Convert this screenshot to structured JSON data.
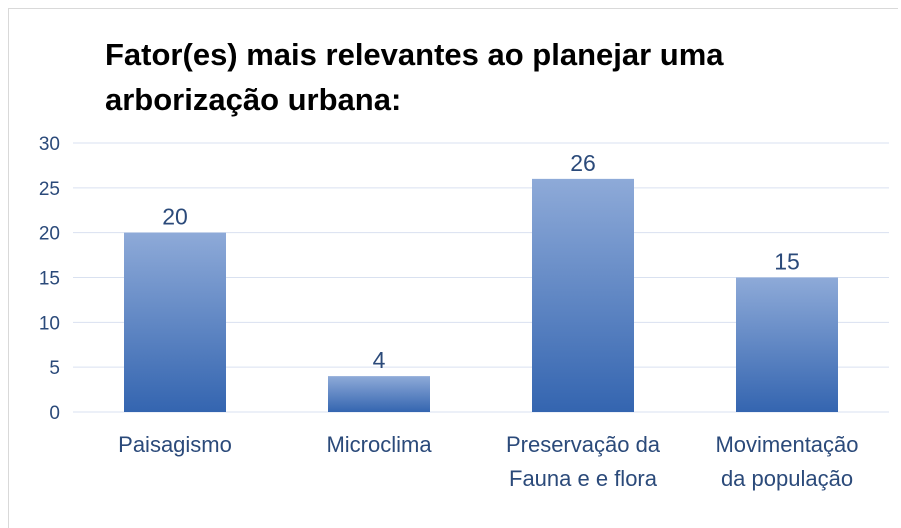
{
  "chart_data": {
    "type": "bar",
    "title": "Fator(es) mais relevantes ao planejar uma arborização urbana:",
    "categories": [
      "Paisagismo",
      "Microclima",
      "Preservação da Fauna e e flora",
      "Movimentação da população"
    ],
    "values": [
      20,
      4,
      26,
      15
    ],
    "color": "#4a78be",
    "ylim": [
      0,
      30
    ],
    "yticks": [
      0,
      5,
      10,
      15,
      20,
      25,
      30
    ],
    "grid": true
  }
}
